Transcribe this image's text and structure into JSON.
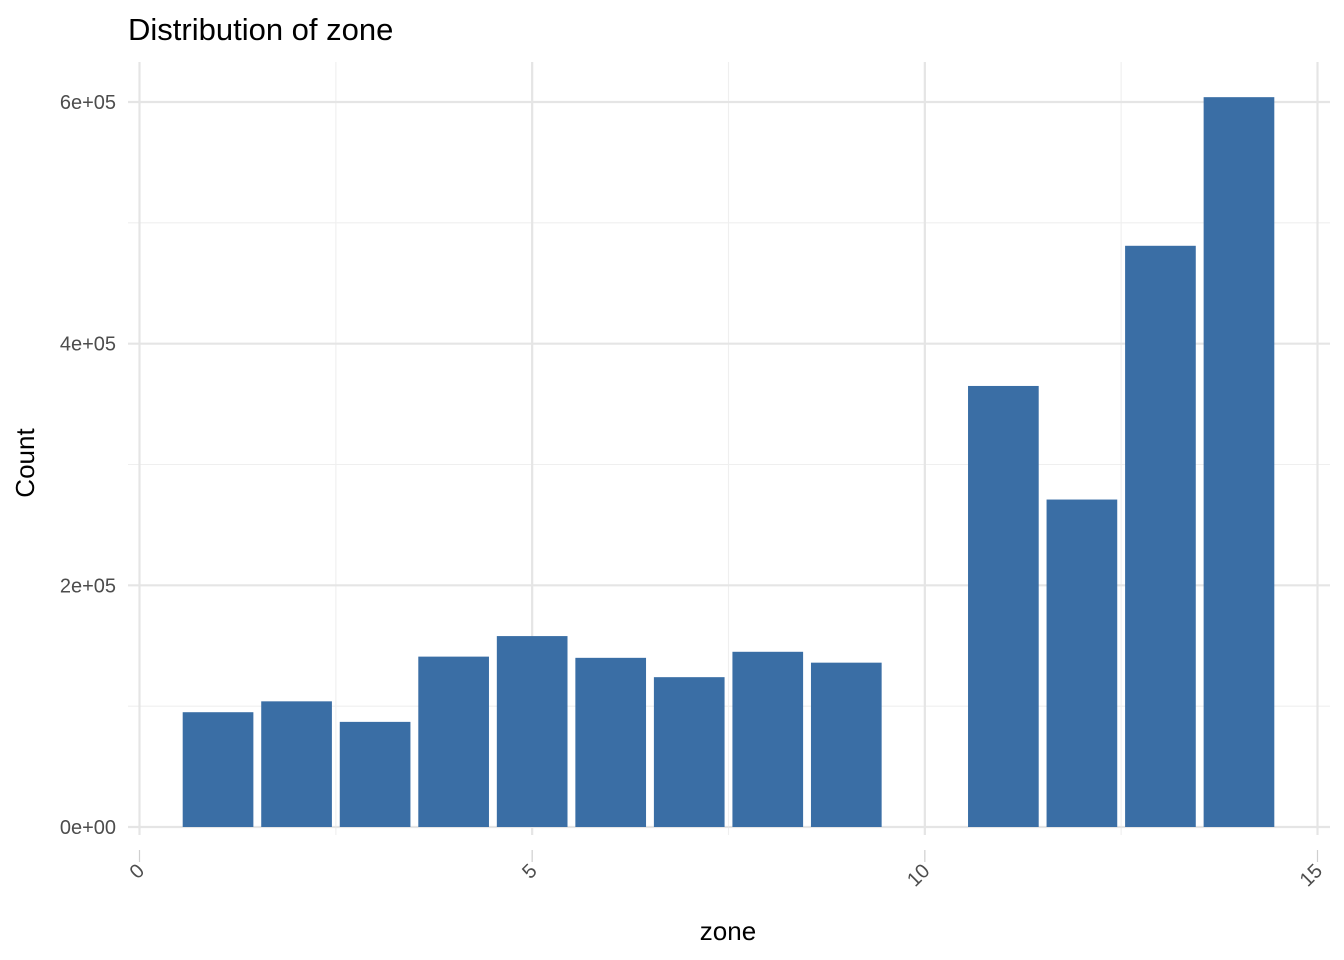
{
  "chart_data": {
    "type": "bar",
    "title": "Distribution of zone",
    "xlabel": "zone",
    "ylabel": "Count",
    "x": [
      1,
      2,
      3,
      4,
      5,
      6,
      7,
      8,
      9,
      11,
      12,
      13,
      14
    ],
    "values": [
      95000,
      104000,
      87000,
      141000,
      158000,
      140000,
      124000,
      145000,
      136000,
      365000,
      271000,
      481000,
      604000
    ],
    "xlim": [
      0,
      15
    ],
    "ylim": [
      0,
      600000
    ],
    "x_ticks": [
      0,
      5,
      10,
      15
    ],
    "x_tick_labels": [
      "0",
      "5",
      "10",
      "15"
    ],
    "y_ticks": [
      0,
      200000,
      400000,
      600000
    ],
    "y_tick_labels": [
      "0e+00",
      "2e+05",
      "4e+05",
      "6e+05"
    ],
    "bar_color": "#3a6ea5",
    "grid": true,
    "legend": "none"
  }
}
